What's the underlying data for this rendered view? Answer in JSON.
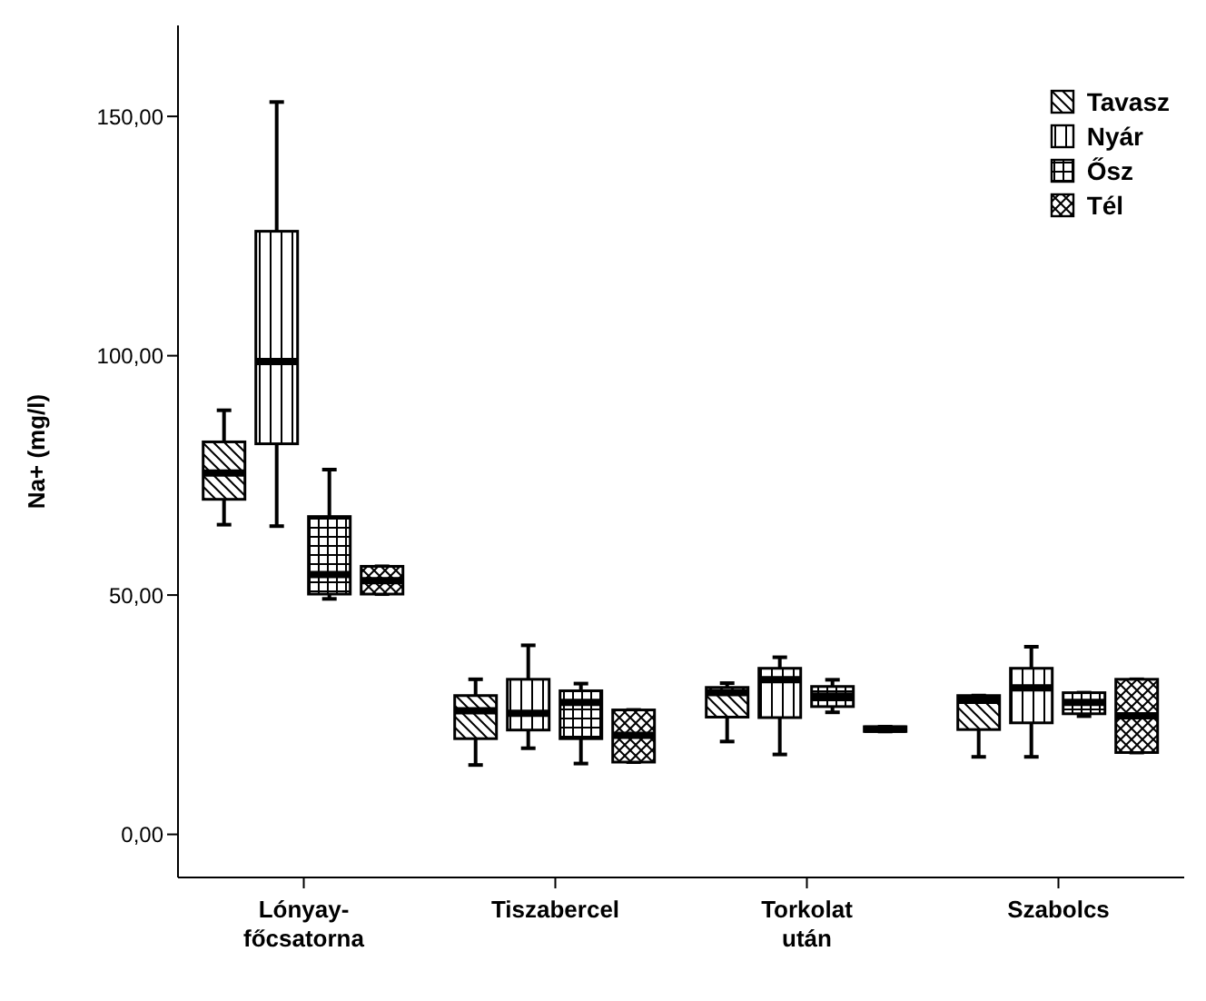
{
  "chart_data": {
    "type": "box",
    "ylabel": "Na+ (mg/l)",
    "categories": [
      "Lónyay- főcsatorna",
      "Tiszabercel",
      "Torkolat után",
      "Szabolcs"
    ],
    "ylim": [
      -9,
      169
    ],
    "yticks": [
      {
        "value": 0,
        "label": "0,00"
      },
      {
        "value": 50,
        "label": "50,00"
      },
      {
        "value": 100,
        "label": "100,00"
      },
      {
        "value": 150,
        "label": "150,00"
      }
    ],
    "grid": false,
    "legend": "top right",
    "series": [
      {
        "name": "Tavasz",
        "color": "#000000",
        "boxes": [
          {
            "low": 64.7,
            "q1": 70,
            "median": 75.5,
            "q3": 82,
            "high": 88.6
          },
          {
            "low": 14.5,
            "q1": 20,
            "median": 25.8,
            "q3": 29,
            "high": 32.4
          },
          {
            "low": 19.4,
            "q1": 24.5,
            "median": 29.6,
            "q3": 30.7,
            "high": 31.6
          },
          {
            "low": 16.2,
            "q1": 21.9,
            "median": 28,
            "q3": 29,
            "high": 29
          }
        ]
      },
      {
        "name": "Nyár",
        "color": "#000000",
        "boxes": [
          {
            "low": 64.4,
            "q1": 81.6,
            "median": 98.8,
            "q3": 126,
            "high": 153
          },
          {
            "low": 18,
            "q1": 21.8,
            "median": 25.3,
            "q3": 32.4,
            "high": 39.5
          },
          {
            "low": 16.7,
            "q1": 24.4,
            "median": 32.3,
            "q3": 34.7,
            "high": 37
          },
          {
            "low": 16.2,
            "q1": 23.3,
            "median": 30.6,
            "q3": 34.7,
            "high": 39.2
          }
        ]
      },
      {
        "name": "Ősz",
        "color": "#000000",
        "boxes": [
          {
            "low": 49.2,
            "q1": 50.2,
            "median": 54.3,
            "q3": 66.4,
            "high": 76.2
          },
          {
            "low": 14.8,
            "q1": 20,
            "median": 27.6,
            "q3": 30,
            "high": 31.5
          },
          {
            "low": 25.5,
            "q1": 26.7,
            "median": 28.9,
            "q3": 30.9,
            "high": 32.3
          },
          {
            "low": 24.7,
            "q1": 25.2,
            "median": 27.6,
            "q3": 29.6,
            "high": 29.6
          }
        ]
      },
      {
        "name": "Tél",
        "color": "#000000",
        "boxes": [
          {
            "low": 50.2,
            "q1": 50.2,
            "median": 53,
            "q3": 56,
            "high": 56
          },
          {
            "low": 15.1,
            "q1": 15.1,
            "median": 20.7,
            "q3": 26,
            "high": 26
          },
          {
            "low": 21.5,
            "q1": 21.5,
            "median": 22,
            "q3": 22.5,
            "high": 22.5
          },
          {
            "low": 17.1,
            "q1": 17.1,
            "median": 24.8,
            "q3": 32.4,
            "high": 32.4
          }
        ]
      }
    ]
  }
}
